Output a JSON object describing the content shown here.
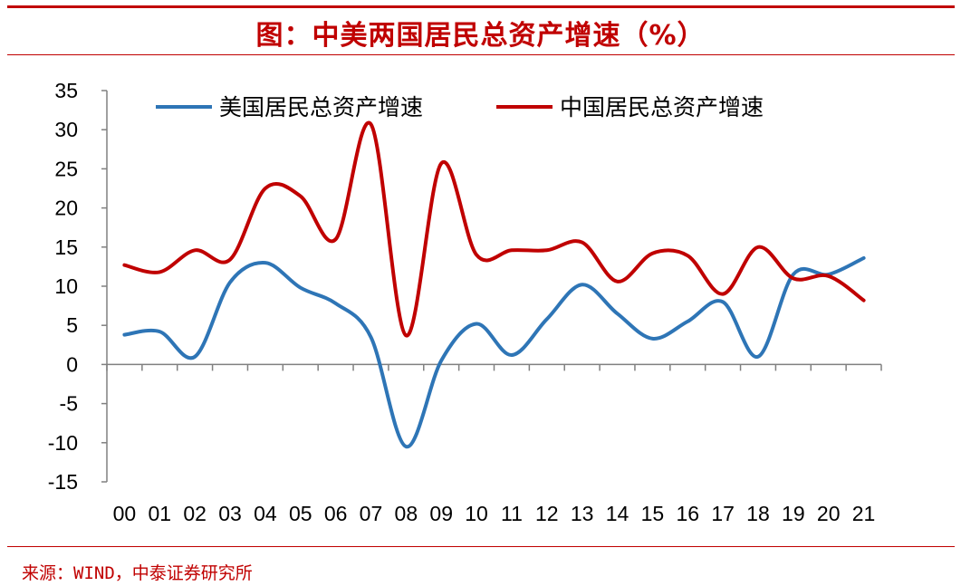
{
  "title": "图：中美两国居民总资产增速（%）",
  "source": "来源：WIND，中泰证券研究所",
  "chart_data": {
    "type": "line",
    "categories": [
      "00",
      "01",
      "02",
      "03",
      "04",
      "05",
      "06",
      "07",
      "08",
      "09",
      "10",
      "11",
      "12",
      "13",
      "14",
      "15",
      "16",
      "17",
      "18",
      "19",
      "20",
      "21"
    ],
    "ylim": [
      -15,
      35
    ],
    "yticks": [
      -15,
      -10,
      -5,
      0,
      5,
      10,
      15,
      20,
      25,
      30,
      35
    ],
    "legend_position": "top",
    "grid": false,
    "series": [
      {
        "name": "美国居民总资产增速",
        "color": "#2e75b6",
        "values": [
          3.8,
          4.2,
          1.0,
          10.5,
          13.0,
          9.8,
          7.8,
          3.5,
          -10.5,
          0.5,
          5.2,
          1.2,
          5.8,
          10.2,
          6.5,
          3.3,
          5.5,
          8.0,
          1.0,
          11.5,
          11.5,
          13.6
        ]
      },
      {
        "name": "中国居民总资产增速",
        "color": "#c00000",
        "values": [
          12.7,
          11.8,
          14.6,
          13.4,
          22.5,
          21.5,
          16.0,
          30.7,
          3.7,
          25.7,
          14.0,
          14.6,
          14.6,
          15.6,
          10.6,
          14.2,
          13.9,
          9.0,
          15.0,
          11.0,
          11.3,
          8.2
        ]
      }
    ]
  }
}
